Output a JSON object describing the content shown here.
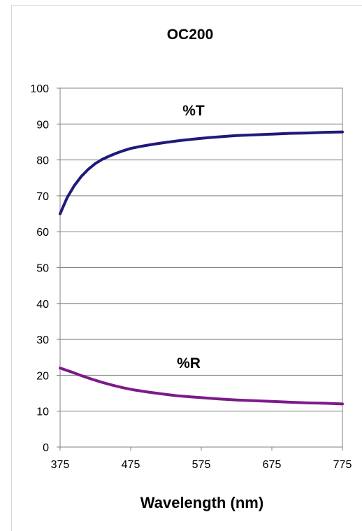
{
  "chart_data": {
    "type": "line",
    "title": "OC200",
    "xlabel": "Wavelength (nm)",
    "ylabel": "",
    "xlim": [
      375,
      775
    ],
    "ylim": [
      0,
      100
    ],
    "x_ticks": [
      375,
      475,
      575,
      675,
      775
    ],
    "y_ticks": [
      0,
      10,
      20,
      30,
      40,
      50,
      60,
      70,
      80,
      90,
      100
    ],
    "grid": "horizontal",
    "x_tick_labels": [
      "375",
      "475",
      "575",
      "675",
      "775"
    ],
    "y_tick_labels": [
      "0",
      "10",
      "20",
      "30",
      "40",
      "50",
      "60",
      "70",
      "80",
      "90",
      "100"
    ],
    "series": [
      {
        "name": "%T",
        "color": "#1f1a7a",
        "x": [
          375,
          385,
          395,
          405,
          415,
          425,
          435,
          445,
          455,
          465,
          475,
          490,
          505,
          525,
          545,
          565,
          585,
          605,
          625,
          650,
          675,
          700,
          725,
          750,
          775
        ],
        "values": [
          65.0,
          69.5,
          72.8,
          75.4,
          77.4,
          79.0,
          80.2,
          81.1,
          81.9,
          82.6,
          83.2,
          83.8,
          84.3,
          84.9,
          85.4,
          85.8,
          86.2,
          86.5,
          86.8,
          87.0,
          87.2,
          87.4,
          87.5,
          87.7,
          87.8
        ]
      },
      {
        "name": "%R",
        "color": "#7d1a8a",
        "x": [
          375,
          390,
          405,
          420,
          435,
          450,
          465,
          480,
          500,
          520,
          540,
          560,
          580,
          600,
          625,
          650,
          675,
          700,
          725,
          750,
          775
        ],
        "values": [
          22.0,
          21.0,
          19.9,
          18.9,
          18.0,
          17.2,
          16.5,
          15.9,
          15.3,
          14.8,
          14.3,
          14.0,
          13.7,
          13.4,
          13.1,
          12.9,
          12.7,
          12.5,
          12.3,
          12.2,
          12.0
        ]
      }
    ]
  }
}
